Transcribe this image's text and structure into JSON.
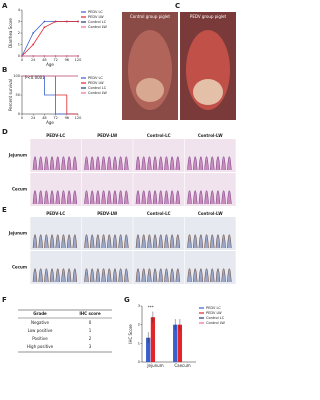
{
  "panel_labels": [
    "A",
    "B",
    "C",
    "D",
    "E",
    "F",
    "G"
  ],
  "chart_data": [
    {
      "type": "line",
      "xlabel": "Age",
      "ylabel": "Diarrhea Score",
      "x": [
        0,
        24,
        48,
        72,
        96,
        120
      ],
      "xlim": [
        0,
        120
      ],
      "xticks": [
        0,
        24,
        48,
        72,
        96,
        120
      ],
      "ylim": [
        0,
        4
      ],
      "yticks": [
        0,
        1,
        2,
        3,
        4
      ],
      "legend": "right",
      "series": [
        {
          "name": "PEDV LC",
          "color": "#3a5fcd",
          "values": [
            0,
            2,
            3,
            3,
            3,
            3
          ]
        },
        {
          "name": "PEDV LW",
          "color": "#e0262b",
          "values": [
            0,
            1,
            2.5,
            3,
            3,
            3
          ]
        },
        {
          "name": "Control LC",
          "color": "#1f3a7a",
          "values": [
            0,
            0,
            0,
            0,
            0,
            0
          ]
        },
        {
          "name": "Control LW",
          "color": "#f07090",
          "values": [
            0,
            0,
            0,
            0,
            0,
            0
          ]
        }
      ]
    },
    {
      "type": "step",
      "xlabel": "Age",
      "ylabel": "Percent survival",
      "annotation": "P<0.0001",
      "x": [
        0,
        24,
        48,
        72,
        96,
        120
      ],
      "xlim": [
        0,
        120
      ],
      "xticks": [
        0,
        24,
        48,
        72,
        96,
        120
      ],
      "ylim": [
        0,
        100
      ],
      "yticks": [
        0,
        50,
        100
      ],
      "legend": "right",
      "series": [
        {
          "name": "PEDV LC",
          "color": "#3a5fcd",
          "values": [
            100,
            100,
            50,
            0,
            0,
            0
          ]
        },
        {
          "name": "PEDV LW",
          "color": "#e0262b",
          "values": [
            100,
            100,
            100,
            50,
            0,
            0
          ]
        },
        {
          "name": "Control LC",
          "color": "#1f3a7a",
          "values": [
            100,
            100,
            100,
            100,
            100,
            100
          ]
        },
        {
          "name": "Control LW",
          "color": "#f07090",
          "values": [
            100,
            100,
            100,
            100,
            100,
            100
          ]
        }
      ]
    },
    {
      "type": "bar",
      "ylabel": "IHC Score",
      "annotation": "***",
      "categories": [
        "Jejunum",
        "Caecum"
      ],
      "ylim": [
        0,
        3
      ],
      "yticks": [
        0,
        1,
        2,
        3
      ],
      "legend": "right",
      "series": [
        {
          "name": "PEDV LC",
          "color": "#3a5fcd",
          "values": [
            1.3,
            2.0
          ],
          "errors": [
            0.3,
            0.3
          ]
        },
        {
          "name": "PEDV LW",
          "color": "#e0262b",
          "values": [
            2.4,
            2.0
          ],
          "errors": [
            0.3,
            0.3
          ]
        },
        {
          "name": "Control LC",
          "color": "#1f3a7a",
          "values": [
            0,
            0
          ],
          "errors": [
            0,
            0
          ]
        },
        {
          "name": "Control LW",
          "color": "#f07090",
          "values": [
            0,
            0
          ],
          "errors": [
            0,
            0
          ]
        }
      ]
    }
  ],
  "photos": {
    "labels": [
      "Control group piglet",
      "PEDV group piglet"
    ]
  },
  "histology": {
    "columns": [
      "PEDV-LC",
      "PEDV-LW",
      "Control-LC",
      "Control-LW"
    ],
    "rows": [
      "Jejunum",
      "Cecum"
    ]
  },
  "ihc": {
    "columns": [
      "PEDV-LC",
      "PEDV-LW",
      "Control-LC",
      "Control-LW"
    ],
    "rows": [
      "Jejunum",
      "Cecum"
    ]
  },
  "table": {
    "header": [
      "Grade",
      "IHC score"
    ],
    "rows": [
      [
        "Negative",
        0
      ],
      [
        "Low positive",
        1
      ],
      [
        "Positive",
        2
      ],
      [
        "High positive",
        3
      ]
    ]
  }
}
